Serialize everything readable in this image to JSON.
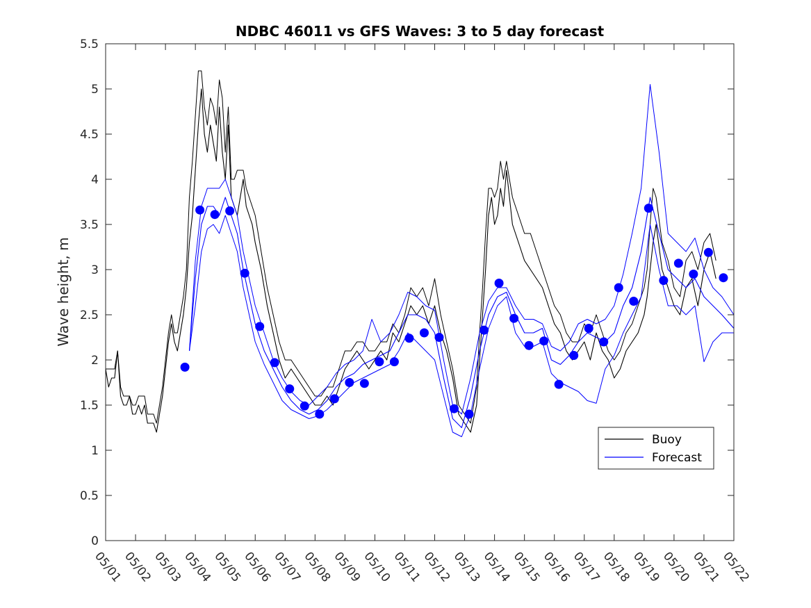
{
  "chart_data": {
    "type": "line",
    "title": "NDBC 46011 vs GFS Waves: 3 to 5 day forecast",
    "xlabel": "",
    "ylabel": "Wave height, m",
    "x_unit": "day of May",
    "xlim": [
      1,
      22
    ],
    "ylim": [
      0,
      5.5
    ],
    "x_ticks": [
      1,
      2,
      3,
      4,
      5,
      6,
      7,
      8,
      9,
      10,
      11,
      12,
      13,
      14,
      15,
      16,
      17,
      18,
      19,
      20,
      21,
      22
    ],
    "x_tick_labels": [
      "05/01",
      "05/02",
      "05/03",
      "05/04",
      "05/05",
      "05/06",
      "05/07",
      "05/08",
      "05/09",
      "05/10",
      "05/11",
      "05/12",
      "05/13",
      "05/14",
      "05/15",
      "05/16",
      "05/17",
      "05/18",
      "05/19",
      "05/20",
      "05/21",
      "05/22"
    ],
    "y_ticks": [
      0,
      0.5,
      1,
      1.5,
      2,
      2.5,
      3,
      3.5,
      4,
      4.5,
      5,
      5.5
    ],
    "y_tick_labels": [
      "0",
      "0.5",
      "1",
      "1.5",
      "2",
      "2.5",
      "3",
      "3.5",
      "4",
      "4.5",
      "5",
      "5.5"
    ],
    "legend": {
      "position": "lower-right",
      "entries": [
        {
          "label": "Buoy",
          "color": "#000000"
        },
        {
          "label": "Forecast",
          "color": "#0000ff"
        }
      ]
    },
    "series": [
      {
        "name": "Buoy",
        "color": "#000000",
        "x": [
          1.0,
          1.1,
          1.2,
          1.3,
          1.4,
          1.5,
          1.6,
          1.7,
          1.8,
          1.9,
          2.0,
          2.1,
          2.2,
          2.3,
          2.4,
          2.5,
          2.6,
          2.7,
          2.8,
          2.9,
          3.0,
          3.1,
          3.2,
          3.3,
          3.4,
          3.5,
          3.6,
          3.7,
          3.8,
          3.9,
          4.0,
          4.1,
          4.2,
          4.3,
          4.4,
          4.5,
          4.6,
          4.7,
          4.8,
          4.9,
          5.0,
          5.1,
          5.2,
          5.3,
          5.4,
          5.5,
          5.6,
          5.7,
          5.8,
          5.9,
          6.0,
          6.2,
          6.4,
          6.6,
          6.8,
          7.0,
          7.2,
          7.4,
          7.6,
          7.8,
          8.0,
          8.2,
          8.4,
          8.6,
          8.8,
          9.0,
          9.2,
          9.4,
          9.6,
          9.8,
          10.0,
          10.2,
          10.4,
          10.6,
          10.8,
          11.0,
          11.2,
          11.4,
          11.6,
          11.8,
          12.0,
          12.2,
          12.4,
          12.6,
          12.8,
          13.0,
          13.2,
          13.4,
          13.5,
          13.6,
          13.7,
          13.8,
          13.9,
          14.0,
          14.1,
          14.2,
          14.3,
          14.4,
          14.5,
          14.6,
          14.8,
          15.0,
          15.2,
          15.4,
          15.6,
          15.8,
          16.0,
          16.2,
          16.4,
          16.6,
          16.8,
          17.0,
          17.2,
          17.4,
          17.6,
          17.8,
          18.0,
          18.2,
          18.4,
          18.6,
          18.8,
          19.0,
          19.1,
          19.2,
          19.3,
          19.4,
          19.6,
          19.8,
          20.0,
          20.2,
          20.4,
          20.6,
          20.8,
          21.0,
          21.2,
          21.4
        ],
        "y": [
          1.9,
          1.7,
          1.8,
          1.8,
          2.1,
          1.6,
          1.5,
          1.5,
          1.6,
          1.4,
          1.4,
          1.5,
          1.4,
          1.5,
          1.3,
          1.3,
          1.3,
          1.2,
          1.4,
          1.6,
          1.9,
          2.2,
          2.4,
          2.2,
          2.1,
          2.3,
          2.5,
          2.8,
          3.3,
          3.6,
          4.1,
          4.6,
          5.0,
          4.5,
          4.3,
          4.6,
          4.4,
          4.2,
          4.8,
          4.3,
          4.0,
          4.6,
          3.8,
          3.7,
          3.6,
          3.8,
          4.0,
          3.7,
          3.6,
          3.5,
          3.3,
          3.0,
          2.6,
          2.3,
          2.0,
          1.8,
          1.9,
          1.8,
          1.7,
          1.6,
          1.5,
          1.5,
          1.6,
          1.5,
          1.7,
          1.9,
          2.0,
          2.1,
          2.0,
          1.9,
          2.0,
          2.1,
          2.0,
          2.3,
          2.2,
          2.4,
          2.6,
          2.5,
          2.6,
          2.4,
          2.6,
          2.3,
          2.1,
          1.8,
          1.4,
          1.3,
          1.2,
          1.5,
          2.0,
          2.5,
          3.0,
          3.6,
          3.8,
          3.5,
          3.6,
          3.9,
          3.7,
          4.1,
          3.8,
          3.5,
          3.3,
          3.1,
          3.0,
          2.9,
          2.8,
          2.6,
          2.4,
          2.3,
          2.1,
          2.0,
          2.1,
          2.2,
          2.0,
          2.3,
          2.1,
          2.0,
          1.8,
          1.9,
          2.1,
          2.2,
          2.3,
          2.5,
          2.7,
          3.0,
          3.3,
          3.5,
          3.0,
          2.8,
          2.6,
          2.5,
          2.8,
          2.9,
          2.6,
          3.0,
          3.2,
          2.9
        ],
        "y_upper": [
          1.9,
          1.9,
          1.9,
          1.9,
          2.1,
          1.7,
          1.6,
          1.6,
          1.6,
          1.5,
          1.5,
          1.6,
          1.6,
          1.6,
          1.4,
          1.4,
          1.4,
          1.3,
          1.5,
          1.7,
          2.0,
          2.3,
          2.5,
          2.3,
          2.3,
          2.5,
          2.7,
          3.0,
          3.8,
          4.2,
          4.7,
          5.2,
          5.2,
          4.8,
          4.6,
          4.9,
          4.8,
          4.6,
          5.1,
          4.9,
          4.3,
          4.8,
          4.0,
          4.0,
          4.1,
          4.1,
          4.1,
          3.9,
          3.8,
          3.7,
          3.6,
          3.2,
          2.8,
          2.5,
          2.2,
          2.0,
          2.0,
          1.9,
          1.8,
          1.7,
          1.6,
          1.6,
          1.7,
          1.7,
          1.9,
          2.1,
          2.1,
          2.2,
          2.2,
          2.1,
          2.1,
          2.2,
          2.2,
          2.4,
          2.3,
          2.5,
          2.8,
          2.7,
          2.8,
          2.6,
          2.9,
          2.5,
          2.2,
          1.9,
          1.5,
          1.4,
          1.3,
          1.7,
          2.3,
          2.8,
          3.4,
          3.9,
          3.9,
          3.8,
          3.9,
          4.2,
          4.0,
          4.2,
          4.0,
          3.8,
          3.6,
          3.4,
          3.4,
          3.2,
          3.0,
          2.8,
          2.6,
          2.5,
          2.3,
          2.2,
          2.2,
          2.4,
          2.3,
          2.5,
          2.3,
          2.1,
          2.0,
          2.1,
          2.3,
          2.4,
          2.6,
          2.8,
          3.0,
          3.5,
          3.9,
          3.8,
          3.3,
          3.1,
          2.8,
          2.7,
          3.1,
          3.2,
          3.0,
          3.3,
          3.4,
          3.1
        ]
      },
      {
        "name": "Forecast",
        "color": "#0000ff",
        "x": [
          3.8,
          4.0,
          4.2,
          4.4,
          4.6,
          4.8,
          5.0,
          5.2,
          5.4,
          5.6,
          5.8,
          6.0,
          6.3,
          6.6,
          6.9,
          7.2,
          7.5,
          7.8,
          8.1,
          8.4,
          8.7,
          9.0,
          9.3,
          9.6,
          9.9,
          10.2,
          10.5,
          10.8,
          11.1,
          11.4,
          11.7,
          12.0,
          12.3,
          12.6,
          12.9,
          13.2,
          13.5,
          13.8,
          14.1,
          14.4,
          14.7,
          15.0,
          15.3,
          15.6,
          15.9,
          16.2,
          16.5,
          16.8,
          17.1,
          17.4,
          17.7,
          18.0,
          18.3,
          18.6,
          18.9,
          19.2,
          19.5,
          19.8,
          20.1,
          20.4,
          20.7,
          21.0,
          21.3,
          21.6,
          22.0
        ],
        "y": [
          2.1,
          2.9,
          3.5,
          3.7,
          3.7,
          3.6,
          3.8,
          3.6,
          3.4,
          3.0,
          2.7,
          2.4,
          2.1,
          1.9,
          1.7,
          1.55,
          1.45,
          1.4,
          1.45,
          1.55,
          1.7,
          1.8,
          1.85,
          1.95,
          2.0,
          2.05,
          2.1,
          2.3,
          2.5,
          2.5,
          2.45,
          2.3,
          1.8,
          1.35,
          1.25,
          1.6,
          2.1,
          2.5,
          2.7,
          2.75,
          2.5,
          2.3,
          2.3,
          2.35,
          2.0,
          1.95,
          2.05,
          2.2,
          2.3,
          2.25,
          2.2,
          2.3,
          2.6,
          2.8,
          3.2,
          3.8,
          3.4,
          3.0,
          2.9,
          2.8,
          2.9,
          2.7,
          2.6,
          2.5,
          2.35
        ],
        "y_upper": [
          2.1,
          3.1,
          3.7,
          3.9,
          3.9,
          3.9,
          4.0,
          3.8,
          3.6,
          3.2,
          2.9,
          2.6,
          2.3,
          2.0,
          1.8,
          1.65,
          1.55,
          1.5,
          1.6,
          1.7,
          1.85,
          1.95,
          2.0,
          2.1,
          2.45,
          2.2,
          2.3,
          2.5,
          2.75,
          2.7,
          2.6,
          2.55,
          2.0,
          1.5,
          1.4,
          1.8,
          2.3,
          2.65,
          2.8,
          2.8,
          2.6,
          2.45,
          2.45,
          2.4,
          2.15,
          2.1,
          2.2,
          2.4,
          2.45,
          2.4,
          2.45,
          2.6,
          2.95,
          3.4,
          3.9,
          5.05,
          4.3,
          3.4,
          3.3,
          3.2,
          3.35,
          3.0,
          2.8,
          2.7,
          2.5
        ],
        "y_lower": [
          2.1,
          2.6,
          3.2,
          3.45,
          3.5,
          3.4,
          3.6,
          3.4,
          3.2,
          2.8,
          2.5,
          2.2,
          1.95,
          1.75,
          1.55,
          1.45,
          1.4,
          1.35,
          1.38,
          1.45,
          1.55,
          1.65,
          1.75,
          1.8,
          1.85,
          1.9,
          1.95,
          2.1,
          2.3,
          2.2,
          2.1,
          2.0,
          1.6,
          1.2,
          1.15,
          1.4,
          1.9,
          2.35,
          2.6,
          2.7,
          2.3,
          2.15,
          2.15,
          2.2,
          1.85,
          1.75,
          1.7,
          1.65,
          1.55,
          1.52,
          1.9,
          2.05,
          2.3,
          2.5,
          2.7,
          3.5,
          3.0,
          2.6,
          2.6,
          2.5,
          2.6,
          1.98,
          2.2,
          2.3,
          2.3
        ]
      },
      {
        "name": "Verification points",
        "color": "#0000ff",
        "x": [
          3.65,
          4.15,
          4.65,
          5.15,
          5.65,
          6.15,
          6.65,
          7.15,
          7.65,
          8.15,
          8.65,
          9.15,
          9.65,
          10.15,
          10.65,
          11.15,
          11.65,
          12.15,
          12.65,
          13.15,
          13.65,
          14.15,
          14.65,
          15.15,
          15.65,
          16.15,
          16.65,
          17.15,
          17.65,
          18.15,
          18.65,
          19.15,
          19.65,
          20.15,
          20.65,
          21.15,
          21.65
        ],
        "y": [
          1.92,
          3.66,
          3.61,
          3.65,
          2.96,
          2.37,
          1.97,
          1.68,
          1.49,
          1.4,
          1.57,
          1.75,
          1.74,
          1.98,
          1.98,
          2.24,
          2.3,
          2.25,
          1.46,
          1.4,
          2.33,
          2.85,
          2.46,
          2.16,
          2.21,
          1.73,
          2.05,
          2.35,
          2.2,
          2.8,
          2.65,
          3.68,
          2.88,
          3.07,
          2.95,
          3.19,
          2.91
        ]
      }
    ]
  }
}
